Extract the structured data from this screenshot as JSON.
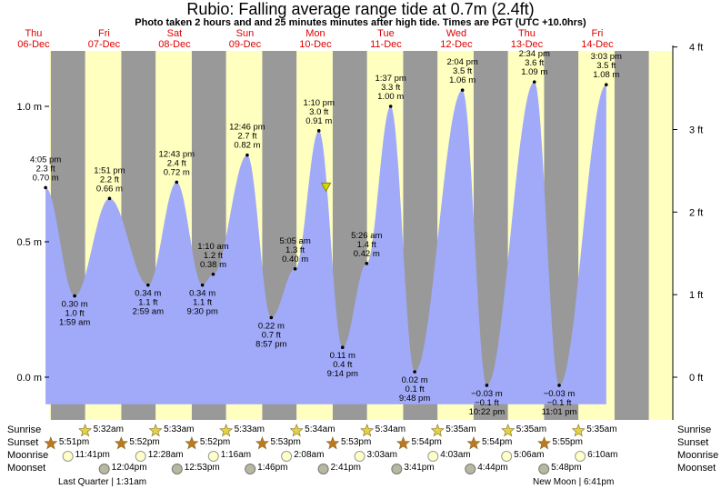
{
  "title": "Rubio: Falling average range tide at 0.7m (2.4ft)",
  "subtitle": "Photo taken 2 hours and and 25 minutes minutes after high tide. Times are PGT (UTC +10.0hrs)",
  "days": [
    {
      "dow": "Thu",
      "date": "06-Dec"
    },
    {
      "dow": "Fri",
      "date": "07-Dec"
    },
    {
      "dow": "Sat",
      "date": "08-Dec"
    },
    {
      "dow": "Sun",
      "date": "09-Dec"
    },
    {
      "dow": "Mon",
      "date": "10-Dec"
    },
    {
      "dow": "Tue",
      "date": "11-Dec"
    },
    {
      "dow": "Wed",
      "date": "12-Dec"
    },
    {
      "dow": "Thu",
      "date": "13-Dec"
    },
    {
      "dow": "Fri",
      "date": "14-Dec"
    }
  ],
  "colors": {
    "day": "#ffffc0",
    "night": "#999999",
    "tide": "#a0aaf8",
    "day_label": "#e00000",
    "sun_star": "#e8d040",
    "sunset_star": "#c07820",
    "moonrise": "#ffffc8",
    "moonset": "#b8b8a0"
  },
  "chart_data": {
    "type": "area",
    "title": "Rubio: Falling average range tide at 0.7m (2.4ft)",
    "ylabel_left": "m",
    "ylabel_right": "ft",
    "left_ticks": [
      "0.0 m",
      "0.5 m",
      "1.0 m"
    ],
    "right_ticks": [
      "0 ft",
      "1 ft",
      "2 ft",
      "3 ft",
      "4 ft"
    ],
    "ylim_m": [
      -0.1,
      1.22
    ],
    "x_unit": "days since Thu 06-Dec 00:00",
    "extremes": [
      {
        "day": 0,
        "time": "4:05 pm",
        "ft": "2.3 ft",
        "m": 0.7,
        "label": "0.70 m",
        "type": "high"
      },
      {
        "day": 1,
        "time": "1:59 am",
        "ft": "1.0 ft",
        "m": 0.3,
        "label": "0.30 m",
        "type": "low"
      },
      {
        "day": 1,
        "time": "1:51 pm",
        "ft": "2.2 ft",
        "m": 0.66,
        "label": "0.66 m",
        "type": "high"
      },
      {
        "day": 2,
        "time": "2:59 am",
        "ft": "1.1 ft",
        "m": 0.34,
        "label": "0.34 m",
        "type": "low"
      },
      {
        "day": 2,
        "time": "12:43 pm",
        "ft": "2.4 ft",
        "m": 0.72,
        "label": "0.72 m",
        "type": "high"
      },
      {
        "day": 2,
        "time": "9:30 pm",
        "ft": "1.1 ft",
        "m": 0.34,
        "label": "0.34 m",
        "type": "low"
      },
      {
        "day": 3,
        "time": "1:10 am",
        "ft": "1.2 ft",
        "m": 0.38,
        "label": "0.38 m",
        "type": "high"
      },
      {
        "day": 3,
        "time": "12:46 pm",
        "ft": "2.7 ft",
        "m": 0.82,
        "label": "0.82 m",
        "type": "high"
      },
      {
        "day": 3,
        "time": "8:57 pm",
        "ft": "0.7 ft",
        "m": 0.22,
        "label": "0.22 m",
        "type": "low"
      },
      {
        "day": 4,
        "time": "5:05 am",
        "ft": "1.3 ft",
        "m": 0.4,
        "label": "0.40 m",
        "type": "high"
      },
      {
        "day": 4,
        "time": "1:10 pm",
        "ft": "3.0 ft",
        "m": 0.91,
        "label": "0.91 m",
        "type": "high"
      },
      {
        "day": 4,
        "time": "9:14 pm",
        "ft": "0.4 ft",
        "m": 0.11,
        "label": "0.11 m",
        "type": "low"
      },
      {
        "day": 5,
        "time": "5:26 am",
        "ft": "1.4 ft",
        "m": 0.42,
        "label": "0.42 m",
        "type": "high"
      },
      {
        "day": 5,
        "time": "1:37 pm",
        "ft": "3.3 ft",
        "m": 1.0,
        "label": "1.00 m",
        "type": "high"
      },
      {
        "day": 5,
        "time": "9:48 pm",
        "ft": "0.1 ft",
        "m": 0.02,
        "label": "0.02 m",
        "type": "low"
      },
      {
        "day": 6,
        "time": "2:04 pm",
        "ft": "3.5 ft",
        "m": 1.06,
        "label": "1.06 m",
        "type": "high"
      },
      {
        "day": 6,
        "time": "10:22 pm",
        "ft": "−0.1 ft",
        "m": -0.03,
        "label": "−0.03 m",
        "type": "low"
      },
      {
        "day": 7,
        "time": "2:34 pm",
        "ft": "3.6 ft",
        "m": 1.09,
        "label": "1.09 m",
        "type": "high"
      },
      {
        "day": 7,
        "time": "11:01 pm",
        "ft": "−0.1 ft",
        "m": -0.03,
        "label": "−0.03 m",
        "type": "low"
      },
      {
        "day": 8,
        "time": "3:03 pm",
        "ft": "3.5 ft",
        "m": 1.08,
        "label": "1.08 m",
        "type": "high"
      }
    ],
    "photo_marker": {
      "day": 4,
      "time": "3:35 pm",
      "m": 0.7
    }
  },
  "astro": {
    "labels": [
      "Sunrise",
      "Sunset",
      "Moonrise",
      "Moonset"
    ],
    "sunrise": [
      {
        "day": 1,
        "time": "5:32am"
      },
      {
        "day": 2,
        "time": "5:33am"
      },
      {
        "day": 3,
        "time": "5:33am"
      },
      {
        "day": 4,
        "time": "5:34am"
      },
      {
        "day": 5,
        "time": "5:34am"
      },
      {
        "day": 6,
        "time": "5:35am"
      },
      {
        "day": 7,
        "time": "5:35am"
      },
      {
        "day": 8,
        "time": "5:35am"
      }
    ],
    "sunset": [
      {
        "day": 0,
        "time": "5:51pm"
      },
      {
        "day": 1,
        "time": "5:52pm"
      },
      {
        "day": 2,
        "time": "5:52pm"
      },
      {
        "day": 3,
        "time": "5:53pm"
      },
      {
        "day": 4,
        "time": "5:53pm"
      },
      {
        "day": 5,
        "time": "5:54pm"
      },
      {
        "day": 6,
        "time": "5:54pm"
      },
      {
        "day": 7,
        "time": "5:55pm"
      }
    ],
    "moonrise": [
      {
        "day": 0,
        "time": "11:41pm"
      },
      {
        "day": 2,
        "time": "12:28am"
      },
      {
        "day": 3,
        "time": "1:16am"
      },
      {
        "day": 4,
        "time": "2:08am"
      },
      {
        "day": 5,
        "time": "3:03am"
      },
      {
        "day": 6,
        "time": "4:03am"
      },
      {
        "day": 7,
        "time": "5:06am"
      },
      {
        "day": 8,
        "time": "6:10am"
      }
    ],
    "moonset": [
      {
        "day": 1,
        "time": "12:04pm"
      },
      {
        "day": 2,
        "time": "12:53pm"
      },
      {
        "day": 3,
        "time": "1:46pm"
      },
      {
        "day": 4,
        "time": "2:41pm"
      },
      {
        "day": 5,
        "time": "3:41pm"
      },
      {
        "day": 6,
        "time": "4:44pm"
      },
      {
        "day": 7,
        "time": "5:48pm"
      }
    ],
    "phases": [
      {
        "text": "Last Quarter | 1:31am"
      },
      {
        "text": "New Moon | 6:41pm"
      }
    ]
  }
}
